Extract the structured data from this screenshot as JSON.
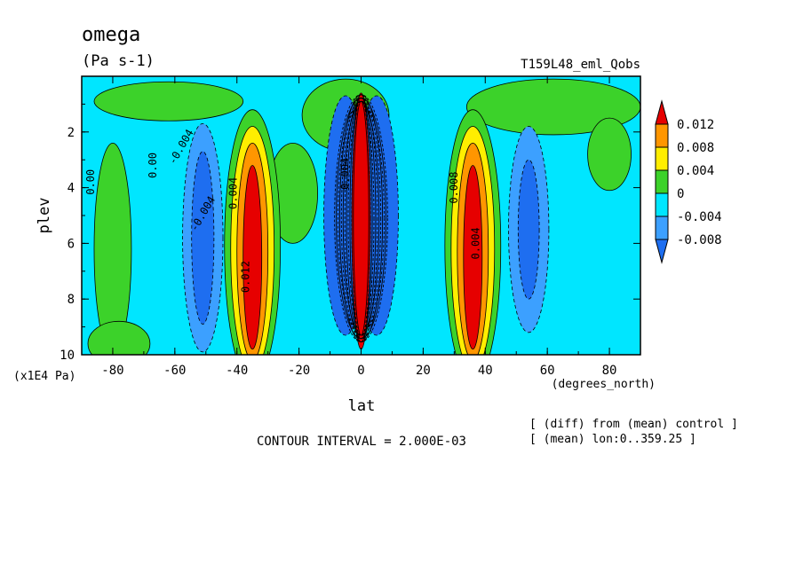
{
  "chart_data": {
    "type": "heatmap",
    "title": "omega",
    "units": "(Pa s-1)",
    "run_label": "T159L48_eml_Qobs",
    "xlabel": "lat",
    "xunits": "(degrees_north)",
    "ylabel": "plev",
    "yunits": "(x1E4 Pa)",
    "x_ticks": [
      -80,
      -60,
      -40,
      -20,
      0,
      20,
      40,
      60,
      80
    ],
    "x_tick_labels": [
      "-80",
      "-60",
      "-40",
      "-20",
      "0",
      "20",
      "40",
      "60",
      "80"
    ],
    "y_ticks": [
      2,
      4,
      6,
      8,
      10
    ],
    "y_tick_labels": [
      "2",
      "4",
      "6",
      "8",
      "10"
    ],
    "xlim": [
      -90,
      90
    ],
    "ylim": [
      10,
      0
    ],
    "levels": [
      -0.008,
      -0.004,
      0,
      0.004,
      0.008,
      0.012
    ],
    "colorbar_labels": [
      "0.012",
      "0.008",
      "0.004",
      "0",
      "-0.004",
      "-0.008"
    ],
    "colors": [
      "#1e6ef0",
      "#3ca0ff",
      "#00e6ff",
      "#3cd22a",
      "#ffee00",
      "#ff9600",
      "#e60000"
    ],
    "contour_interval_text": "CONTOUR INTERVAL = 2.000E-03",
    "notes": [
      "[ (diff) from (mean) control ]",
      "[ (mean) lon:0..359.25 ]"
    ],
    "inline_labels": [
      "0.00",
      "0.00",
      "-0.004",
      "0.004",
      "0.012",
      "-0.004",
      "0.004",
      "0.008",
      "0.004"
    ],
    "features": [
      {
        "lat": 0,
        "plev": 5.2,
        "value": 0.06
      },
      {
        "lat": -35,
        "plev": 6.5,
        "value": 0.013
      },
      {
        "lat": 36,
        "plev": 6.5,
        "value": 0.013
      },
      {
        "lat": -51,
        "plev": 5.8,
        "value": -0.006
      },
      {
        "lat": 54,
        "plev": 5.5,
        "value": -0.005
      },
      {
        "lat": -4,
        "plev": 5,
        "value": -0.009
      },
      {
        "lat": 5,
        "plev": 5,
        "value": -0.009
      },
      {
        "lat": -80,
        "plev": 7,
        "value": 0.001
      },
      {
        "lat": 80,
        "plev": 3,
        "value": 0.001
      }
    ]
  }
}
